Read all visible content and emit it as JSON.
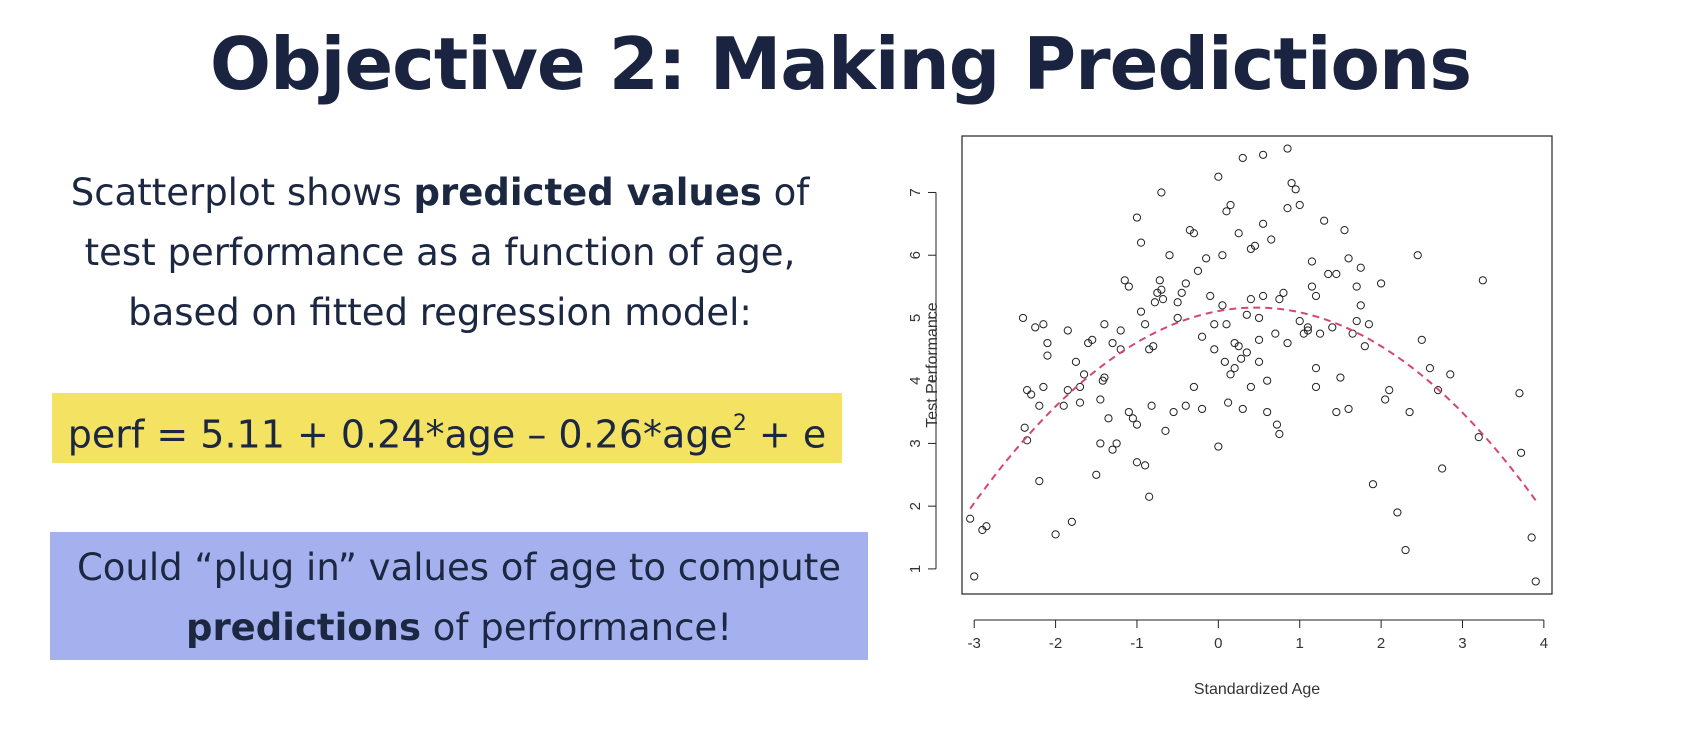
{
  "slide": {
    "title": "Objective 2: Making Predictions",
    "intro_part1": "Scatterplot shows ",
    "intro_bold": "predicted values",
    "intro_part2": " of test performance as a function of age, based on fitted regression model:",
    "equation_main": "perf = 5.11 + 0.24*age – 0.26*age",
    "equation_sup": "2",
    "equation_tail": " + e",
    "callout_part1": "Could “plug in” values of age to compute ",
    "callout_bold": "predictions",
    "callout_part2": " of performance!"
  },
  "colors": {
    "equation_bg": "#f4e263",
    "callout_bg": "#a5b1ef",
    "curve": "#d6457a",
    "text": "#1c2742"
  },
  "chart_data": {
    "type": "scatter",
    "xlabel": "Standardized Age",
    "ylabel": "Test Performance",
    "xlim": [
      -3.15,
      4.1
    ],
    "ylim": [
      0.6,
      7.9
    ],
    "xticks": [
      -3,
      -2,
      -1,
      0,
      1,
      2,
      3,
      4
    ],
    "yticks": [
      1,
      2,
      3,
      4,
      5,
      6,
      7
    ],
    "grid": false,
    "points": [
      [
        -3.05,
        1.8
      ],
      [
        -3.0,
        0.88
      ],
      [
        -2.9,
        1.62
      ],
      [
        -2.85,
        1.68
      ],
      [
        -2.4,
        5.0
      ],
      [
        -2.35,
        3.85
      ],
      [
        -2.38,
        3.25
      ],
      [
        -2.35,
        3.05
      ],
      [
        -2.3,
        3.78
      ],
      [
        -2.25,
        4.85
      ],
      [
        -2.2,
        2.4
      ],
      [
        -2.2,
        3.6
      ],
      [
        -2.15,
        4.9
      ],
      [
        -2.15,
        3.9
      ],
      [
        -2.1,
        4.4
      ],
      [
        -2.1,
        4.6
      ],
      [
        -2.0,
        1.55
      ],
      [
        -1.9,
        3.6
      ],
      [
        -1.85,
        4.8
      ],
      [
        -1.85,
        3.85
      ],
      [
        -1.8,
        1.75
      ],
      [
        -1.75,
        4.3
      ],
      [
        -1.7,
        3.9
      ],
      [
        -1.7,
        3.65
      ],
      [
        -1.65,
        4.1
      ],
      [
        -1.6,
        4.6
      ],
      [
        -1.55,
        4.65
      ],
      [
        -1.5,
        2.5
      ],
      [
        -1.45,
        3.0
      ],
      [
        -1.45,
        3.7
      ],
      [
        -1.42,
        4.0
      ],
      [
        -1.4,
        4.05
      ],
      [
        -1.4,
        4.9
      ],
      [
        -1.35,
        3.4
      ],
      [
        -1.3,
        2.9
      ],
      [
        -1.3,
        4.6
      ],
      [
        -1.25,
        3.0
      ],
      [
        -1.2,
        4.8
      ],
      [
        -1.2,
        4.5
      ],
      [
        -1.15,
        5.6
      ],
      [
        -1.1,
        5.5
      ],
      [
        -1.1,
        3.5
      ],
      [
        -1.05,
        3.4
      ],
      [
        -1.0,
        6.6
      ],
      [
        -1.0,
        2.7
      ],
      [
        -1.0,
        3.3
      ],
      [
        -0.95,
        6.2
      ],
      [
        -0.95,
        5.1
      ],
      [
        -0.9,
        4.9
      ],
      [
        -0.9,
        2.65
      ],
      [
        -0.85,
        4.5
      ],
      [
        -0.85,
        2.15
      ],
      [
        -0.82,
        3.6
      ],
      [
        -0.8,
        4.55
      ],
      [
        -0.78,
        5.25
      ],
      [
        -0.75,
        5.4
      ],
      [
        -0.72,
        5.6
      ],
      [
        -0.7,
        7.0
      ],
      [
        -0.7,
        5.45
      ],
      [
        -0.68,
        5.3
      ],
      [
        -0.65,
        3.2
      ],
      [
        -0.6,
        6.0
      ],
      [
        -0.55,
        3.5
      ],
      [
        -0.5,
        5.0
      ],
      [
        -0.5,
        5.25
      ],
      [
        -0.45,
        5.4
      ],
      [
        -0.4,
        5.55
      ],
      [
        -0.4,
        3.6
      ],
      [
        -0.35,
        6.4
      ],
      [
        -0.3,
        6.35
      ],
      [
        -0.3,
        3.9
      ],
      [
        -0.25,
        5.75
      ],
      [
        -0.2,
        3.55
      ],
      [
        -0.2,
        4.7
      ],
      [
        -0.15,
        5.95
      ],
      [
        -0.1,
        5.35
      ],
      [
        -0.05,
        4.9
      ],
      [
        -0.05,
        4.5
      ],
      [
        0.0,
        2.95
      ],
      [
        0.0,
        7.25
      ],
      [
        0.05,
        6.0
      ],
      [
        0.05,
        5.2
      ],
      [
        0.08,
        4.3
      ],
      [
        0.1,
        6.7
      ],
      [
        0.1,
        4.9
      ],
      [
        0.12,
        3.65
      ],
      [
        0.15,
        6.8
      ],
      [
        0.15,
        4.1
      ],
      [
        0.2,
        4.6
      ],
      [
        0.2,
        4.2
      ],
      [
        0.25,
        6.35
      ],
      [
        0.25,
        4.55
      ],
      [
        0.28,
        4.35
      ],
      [
        0.3,
        7.55
      ],
      [
        0.3,
        3.55
      ],
      [
        0.35,
        5.05
      ],
      [
        0.35,
        4.45
      ],
      [
        0.4,
        6.1
      ],
      [
        0.4,
        5.3
      ],
      [
        0.4,
        3.9
      ],
      [
        0.45,
        6.15
      ],
      [
        0.5,
        5.0
      ],
      [
        0.5,
        4.65
      ],
      [
        0.5,
        4.3
      ],
      [
        0.55,
        7.6
      ],
      [
        0.55,
        6.5
      ],
      [
        0.55,
        5.35
      ],
      [
        0.6,
        3.5
      ],
      [
        0.6,
        4.0
      ],
      [
        0.65,
        6.25
      ],
      [
        0.7,
        4.75
      ],
      [
        0.72,
        3.3
      ],
      [
        0.75,
        5.3
      ],
      [
        0.75,
        3.15
      ],
      [
        0.8,
        5.4
      ],
      [
        0.85,
        7.7
      ],
      [
        0.85,
        6.75
      ],
      [
        0.85,
        4.6
      ],
      [
        0.9,
        7.15
      ],
      [
        0.95,
        7.05
      ],
      [
        1.0,
        6.8
      ],
      [
        1.0,
        4.95
      ],
      [
        1.05,
        4.75
      ],
      [
        1.1,
        4.8
      ],
      [
        1.1,
        4.85
      ],
      [
        1.15,
        5.9
      ],
      [
        1.15,
        5.5
      ],
      [
        1.2,
        5.35
      ],
      [
        1.2,
        4.2
      ],
      [
        1.2,
        3.9
      ],
      [
        1.25,
        4.75
      ],
      [
        1.3,
        6.55
      ],
      [
        1.35,
        5.7
      ],
      [
        1.4,
        4.85
      ],
      [
        1.45,
        5.7
      ],
      [
        1.45,
        3.5
      ],
      [
        1.5,
        4.05
      ],
      [
        1.55,
        6.4
      ],
      [
        1.6,
        5.95
      ],
      [
        1.6,
        3.55
      ],
      [
        1.65,
        4.75
      ],
      [
        1.7,
        5.5
      ],
      [
        1.7,
        4.95
      ],
      [
        1.75,
        5.8
      ],
      [
        1.75,
        5.2
      ],
      [
        1.8,
        4.55
      ],
      [
        1.85,
        4.9
      ],
      [
        1.9,
        2.35
      ],
      [
        2.0,
        5.55
      ],
      [
        2.05,
        3.7
      ],
      [
        2.1,
        3.85
      ],
      [
        2.2,
        1.9
      ],
      [
        2.3,
        1.3
      ],
      [
        2.35,
        3.5
      ],
      [
        2.45,
        6.0
      ],
      [
        2.5,
        4.65
      ],
      [
        2.6,
        4.2
      ],
      [
        2.7,
        3.85
      ],
      [
        2.75,
        2.6
      ],
      [
        2.85,
        4.1
      ],
      [
        3.2,
        3.1
      ],
      [
        3.25,
        5.6
      ],
      [
        3.7,
        3.8
      ],
      [
        3.72,
        2.85
      ],
      [
        3.85,
        1.5
      ],
      [
        3.9,
        0.8
      ]
    ],
    "fitted_curve": {
      "type": "quadratic",
      "intercept": 5.11,
      "linear": 0.24,
      "quadratic": -0.26,
      "x_range": [
        -3.05,
        3.9
      ],
      "style": "dashed"
    }
  }
}
